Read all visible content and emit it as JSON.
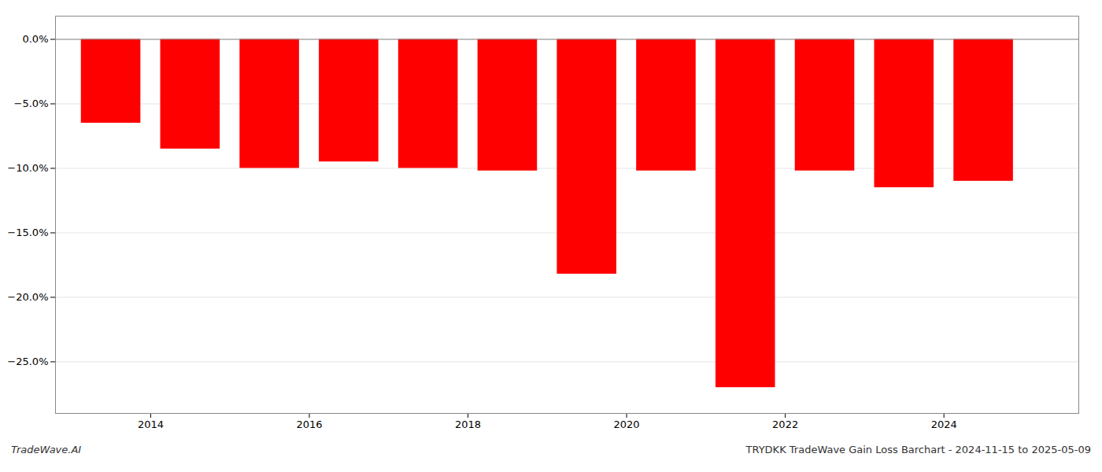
{
  "chart_data": {
    "type": "bar",
    "x": [
      2013.5,
      2014.5,
      2015.5,
      2016.5,
      2017.5,
      2018.5,
      2019.5,
      2020.5,
      2021.5,
      2022.5,
      2023.5,
      2024.5
    ],
    "values": [
      -6.5,
      -8.5,
      -10.0,
      -9.5,
      -10.0,
      -10.2,
      -18.2,
      -10.2,
      -27.0,
      -10.2,
      -11.5,
      -11.0
    ],
    "color": "#ff0000",
    "xlim": [
      2012.8,
      2025.7
    ],
    "xticks": [
      2014,
      2016,
      2018,
      2020,
      2022,
      2024
    ],
    "ylim": [
      -29.0,
      1.8
    ],
    "yticks": [
      {
        "value": 0.0,
        "label": "0.0%"
      },
      {
        "value": -5.0,
        "label": "−5.0%"
      },
      {
        "value": -10.0,
        "label": "−10.0%"
      },
      {
        "value": -15.0,
        "label": "−15.0%"
      },
      {
        "value": -20.0,
        "label": "−20.0%"
      },
      {
        "value": -25.0,
        "label": "−25.0%"
      }
    ],
    "grid": true,
    "annotations": [
      "TradeWave.AI",
      "TRYDKK TradeWave Gain Loss Barchart - 2024-11-15 to 2025-05-09"
    ]
  }
}
